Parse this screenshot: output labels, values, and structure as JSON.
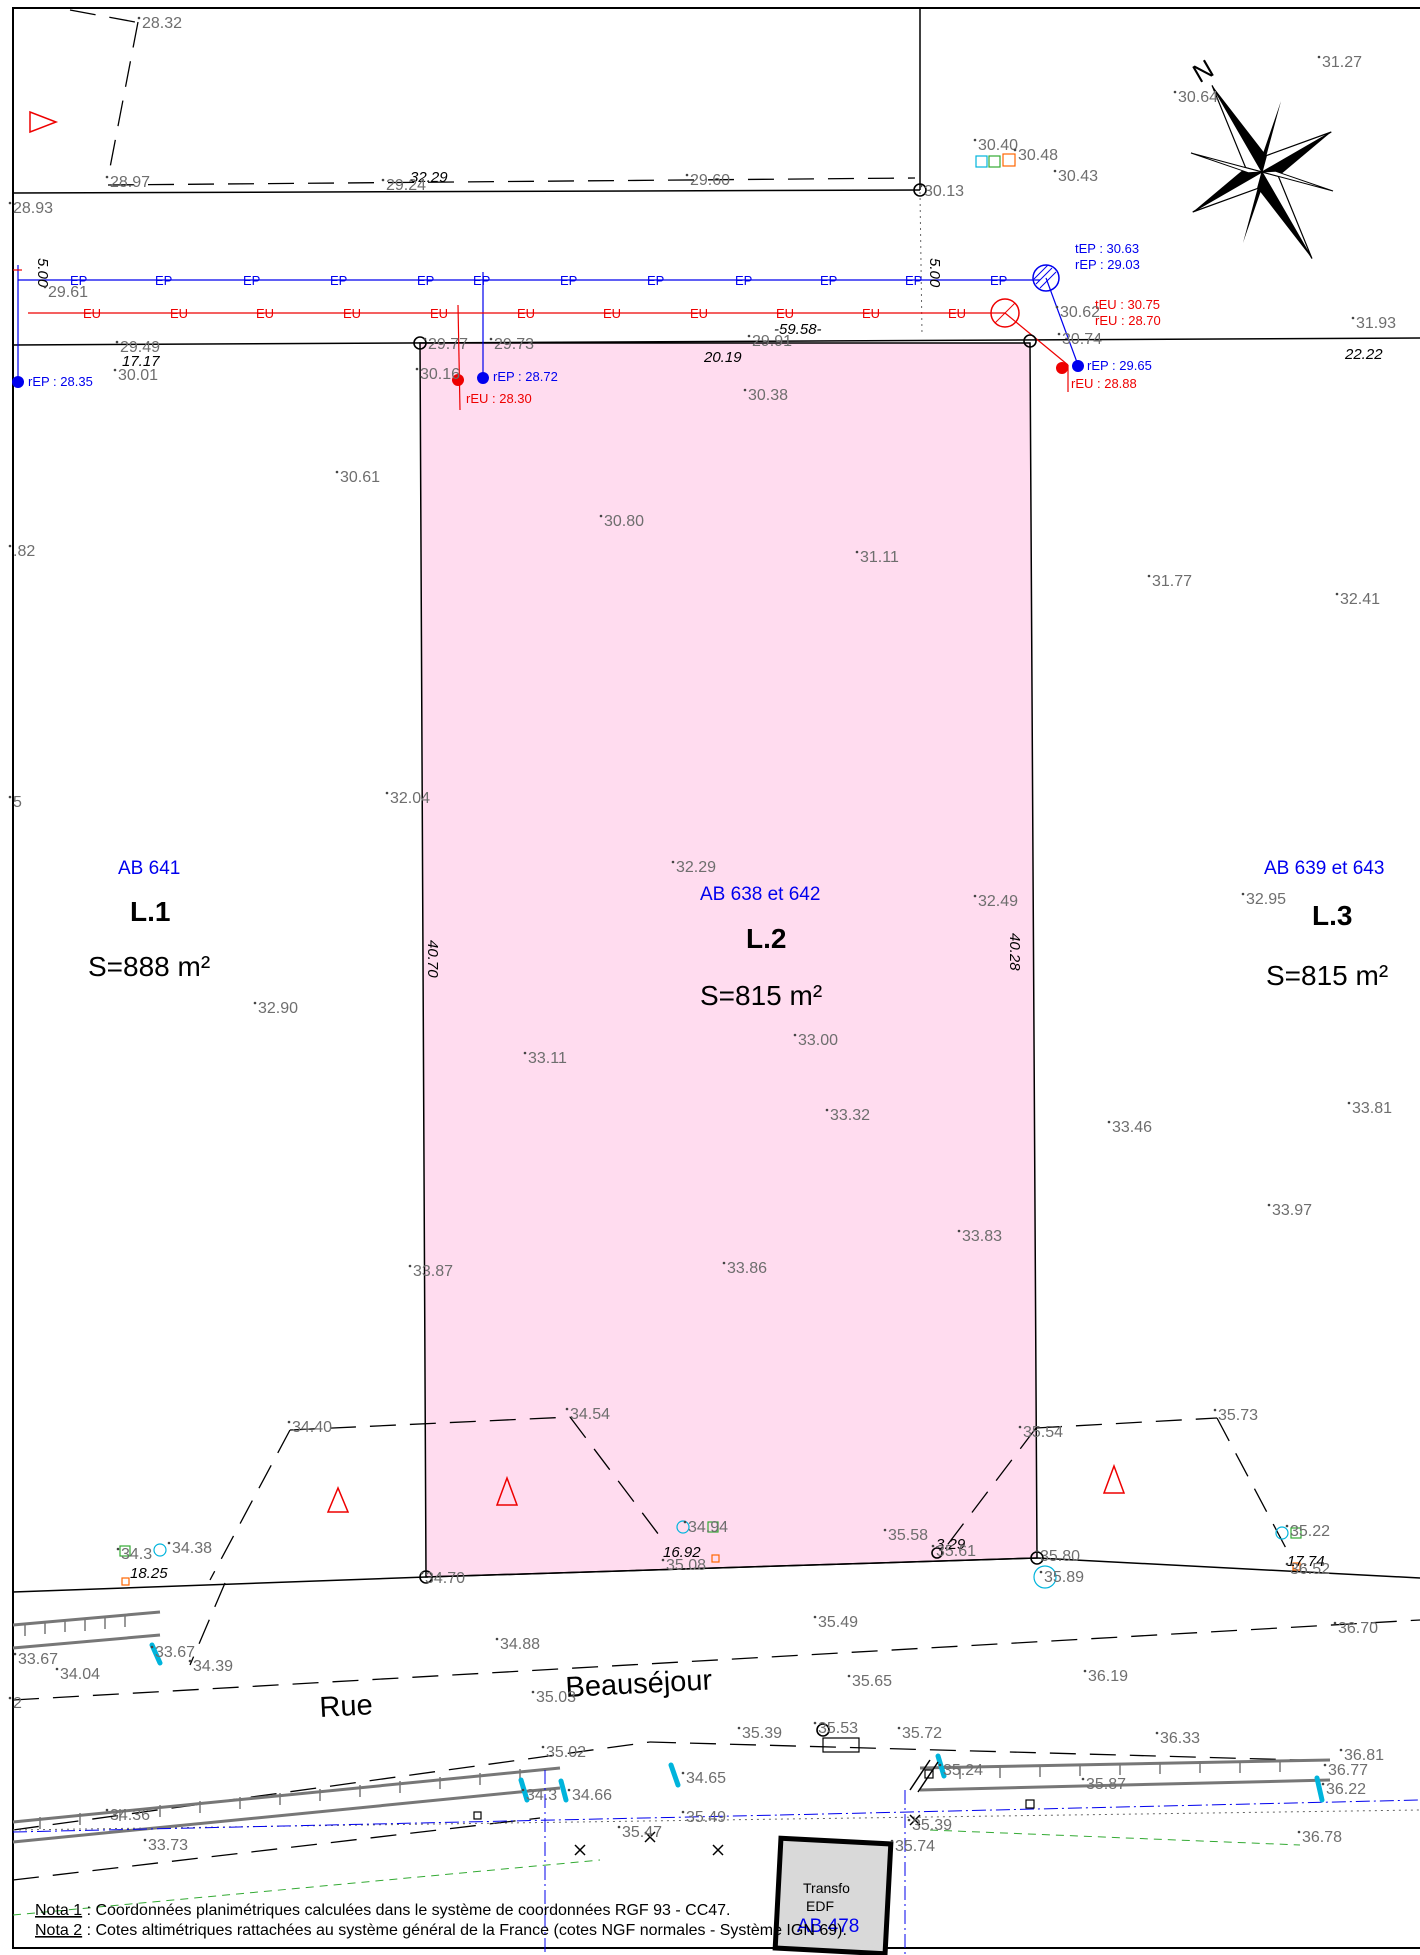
{
  "lots": [
    {
      "name": "L.1",
      "parcel": "AB 641",
      "area": "S=888 m²"
    },
    {
      "name": "L.2",
      "parcel": "AB 638 et 642",
      "area": "S=815 m²"
    },
    {
      "name": "L.3",
      "parcel": "AB 639 et 643",
      "area": "S=815 m²"
    }
  ],
  "street": {
    "word1": "Rue",
    "word2": "Beauséjour"
  },
  "transformer": {
    "line1": "Transfo",
    "line2": "EDF",
    "parcel": "AB 478"
  },
  "north_label": "N",
  "network": {
    "ep_label": "EP",
    "eu_label": "EU",
    "tags": [
      "rEP : 28.35",
      "rEP : 28.72",
      "rEU : 28.30",
      "tEP : 30.63",
      "rEP : 29.03",
      "tEU : 30.75",
      "rEU : 28.70",
      "rEP : 29.65",
      "rEU : 28.88"
    ]
  },
  "dimensions": [
    "32.29",
    "5.00",
    "5.00",
    "17.17",
    "20.19",
    "-59.58-",
    "22.22",
    "40.70",
    "40.28",
    "16.92",
    "3.29",
    "18.25",
    "17.74"
  ],
  "spot_heights": [
    "28.32",
    "28.97",
    "29.24",
    "29.60",
    "30.13",
    "30.40",
    "30.48",
    "30.43",
    "30.64",
    "31.27",
    "28.93",
    "29.61",
    "29.49",
    "30.01",
    "29.77",
    "29.73",
    "30.16",
    "29.91",
    "30.38",
    "30.61",
    "30.62",
    "30.74",
    "31.93",
    "30.80",
    "31.11",
    "31.77",
    "32.41",
    ".82",
    "5",
    "32.04",
    "32.29",
    "32.49",
    "32.95",
    "32.90",
    "33.11",
    "33.00",
    "33.32",
    "33.46",
    "33.81",
    "33.97",
    "33.87",
    "33.86",
    "33.83",
    "34.40",
    "34.54",
    "35.54",
    "35.73",
    "34.38",
    "34.3",
    "34.94",
    "35.58",
    "35.61",
    "35.80",
    "35.89",
    "35.22",
    "36.52",
    "34.70",
    "35.08",
    "35.49",
    "36.70",
    "33.67",
    "34.04",
    "33.67",
    "34.39",
    "34.88",
    "35.03",
    "35.65",
    "36.19",
    "35.02",
    "35.39",
    "35.53",
    "35.72",
    "36.33",
    "36.81",
    "36.77",
    "36.22",
    "35.24",
    "35.87",
    "34.65",
    "34.66",
    "34.3",
    "34.36",
    "33.73",
    "35.47",
    "35.49",
    "35.39",
    "35.74",
    "36.78",
    "2"
  ],
  "notes": [
    {
      "label": "Nota 1",
      "text": " : Coordonnées planimétriques calculées dans le système de coordonnées RGF 93 - CC47."
    },
    {
      "label": "Nota 2",
      "text": " : Cotes altimétriques rattachées au système général de la France (cotes NGF normales - Système IGN 69)."
    }
  ],
  "colors": {
    "lot2_fill": "#ffdcef",
    "ep_blue": "#0000ee",
    "eu_red": "#ee0000",
    "spot_gray": "#6e6e6e",
    "cyan": "#00b4dc",
    "green": "#33aa33",
    "transfo_fill": "#d9d9d9"
  }
}
